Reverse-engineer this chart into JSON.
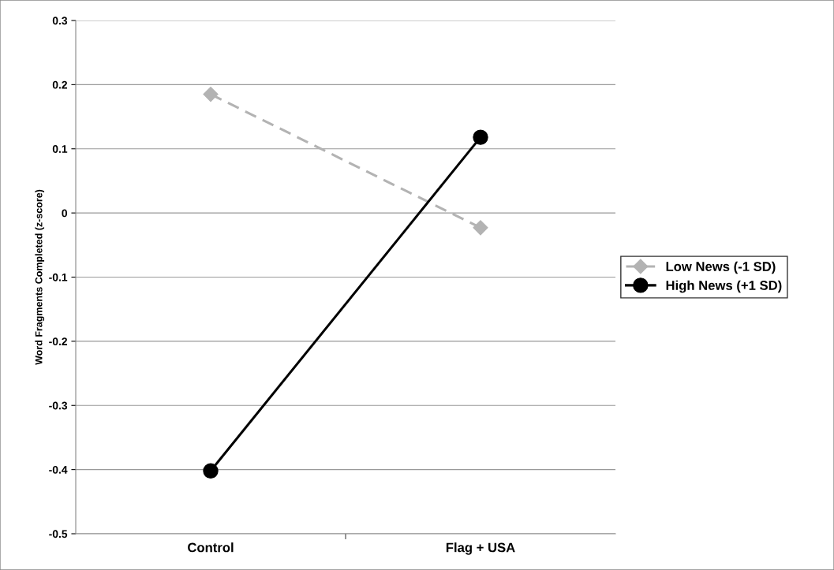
{
  "chart_data": {
    "type": "line",
    "ylabel": "Word Fragments Completed (z-score)",
    "categories": [
      "Control",
      "Flag + USA"
    ],
    "series": [
      {
        "name": "Low News (-1 SD)",
        "color": "#b3b3b3",
        "values": [
          0.185,
          -0.023
        ],
        "marker": "diamond",
        "line_style": "dashed"
      },
      {
        "name": "High News (+1 SD)",
        "color": "#000000",
        "values": [
          -0.402,
          0.118
        ],
        "marker": "circle",
        "line_style": "solid"
      }
    ],
    "ylim": [
      -0.5,
      0.3
    ],
    "yticks": [
      {
        "value": -0.5,
        "label": "-0.5"
      },
      {
        "value": -0.4,
        "label": "-0.4"
      },
      {
        "value": -0.3,
        "label": "-0.3"
      },
      {
        "value": -0.2,
        "label": "-0.2"
      },
      {
        "value": -0.1,
        "label": "-0.1"
      },
      0,
      0.1,
      0.2,
      0.3
    ],
    "grid": "y",
    "legend": "right"
  }
}
